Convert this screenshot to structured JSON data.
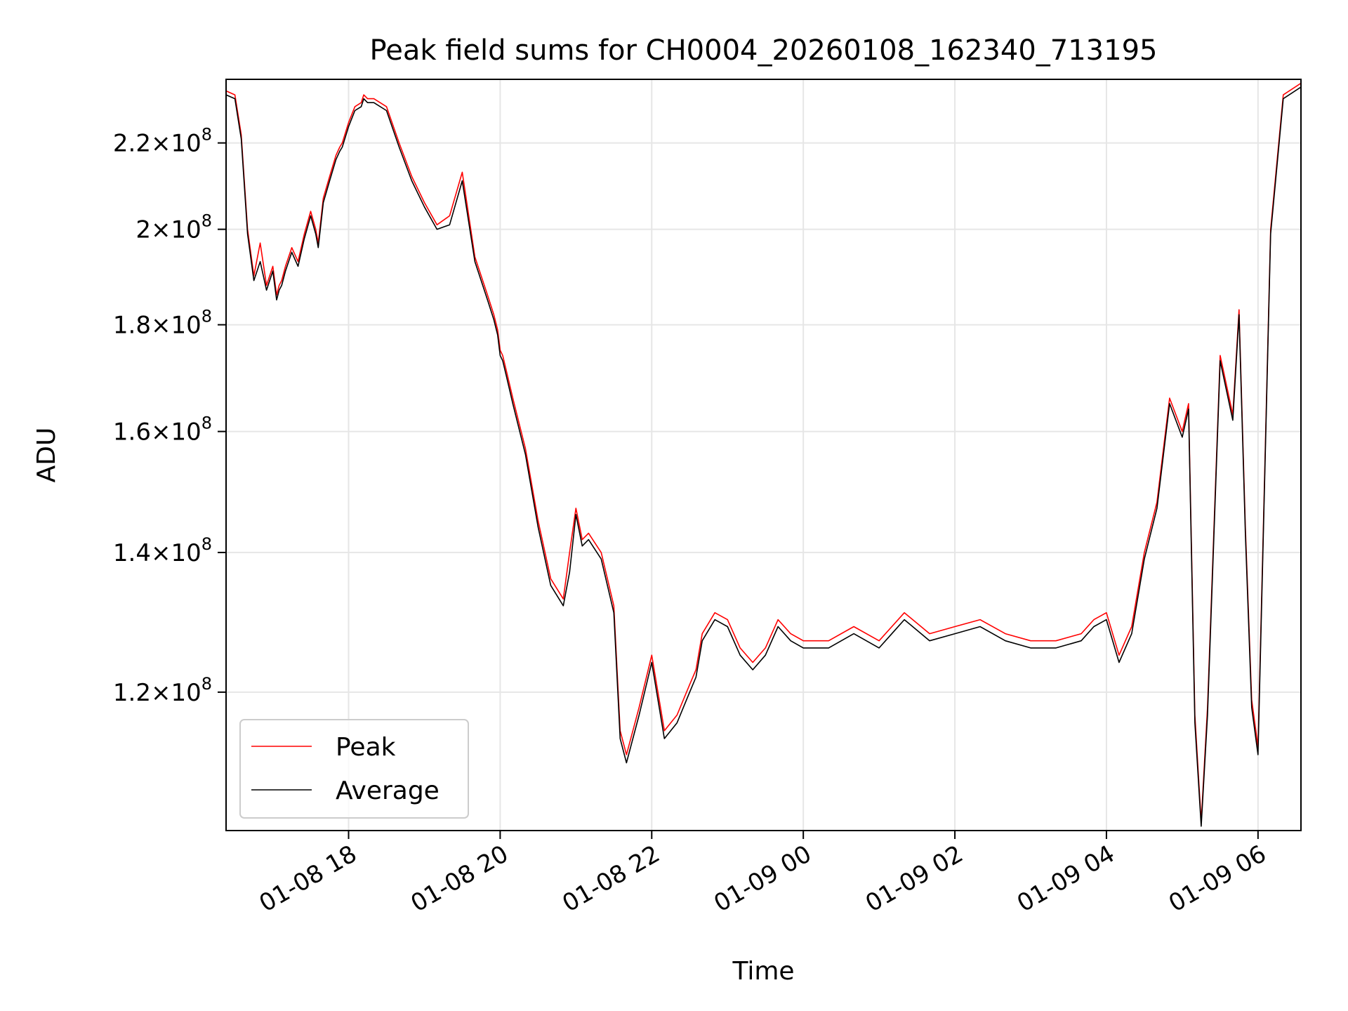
{
  "chart_data": {
    "type": "line",
    "title": "Peak field sums for CH0004_20260108_162340_713195",
    "xlabel": "Time",
    "ylabel": "ADU",
    "y_scale": "log",
    "grid": true,
    "legend_position": "lower-left",
    "xlim": [
      "2026-01-08T16:23",
      "2026-01-09T06:34"
    ],
    "ylim": [
      103000000,
      236000000
    ],
    "x_ticks": [
      {
        "value": "2026-01-08T18:00",
        "label": "01-08 18"
      },
      {
        "value": "2026-01-08T20:00",
        "label": "01-08 20"
      },
      {
        "value": "2026-01-08T22:00",
        "label": "01-08 22"
      },
      {
        "value": "2026-01-09T00:00",
        "label": "01-09 00"
      },
      {
        "value": "2026-01-09T02:00",
        "label": "01-09 02"
      },
      {
        "value": "2026-01-09T04:00",
        "label": "01-09 04"
      },
      {
        "value": "2026-01-09T06:00",
        "label": "01-09 06"
      }
    ],
    "y_ticks": [
      {
        "value": 120000000,
        "mantissa": "1.2",
        "exponent": "8"
      },
      {
        "value": 140000000,
        "mantissa": "1.4",
        "exponent": "8"
      },
      {
        "value": 160000000,
        "mantissa": "1.6",
        "exponent": "8"
      },
      {
        "value": 180000000,
        "mantissa": "1.8",
        "exponent": "8"
      },
      {
        "value": 200000000,
        "mantissa": "2",
        "exponent": "8"
      },
      {
        "value": 220000000,
        "mantissa": "2.2",
        "exponent": "8"
      }
    ],
    "series": [
      {
        "name": "Peak",
        "color": "#ff0000",
        "x": [
          "2026-01-08T16:23",
          "2026-01-08T16:30",
          "2026-01-08T16:35",
          "2026-01-08T16:40",
          "2026-01-08T16:45",
          "2026-01-08T16:50",
          "2026-01-08T16:55",
          "2026-01-08T17:00",
          "2026-01-08T17:03",
          "2026-01-08T17:05",
          "2026-01-08T17:07",
          "2026-01-08T17:10",
          "2026-01-08T17:15",
          "2026-01-08T17:20",
          "2026-01-08T17:25",
          "2026-01-08T17:30",
          "2026-01-08T17:34",
          "2026-01-08T17:36",
          "2026-01-08T17:40",
          "2026-01-08T17:45",
          "2026-01-08T17:50",
          "2026-01-08T17:53",
          "2026-01-08T17:55",
          "2026-01-08T18:00",
          "2026-01-08T18:05",
          "2026-01-08T18:10",
          "2026-01-08T18:12",
          "2026-01-08T18:15",
          "2026-01-08T18:20",
          "2026-01-08T18:30",
          "2026-01-08T18:40",
          "2026-01-08T18:50",
          "2026-01-08T19:00",
          "2026-01-08T19:10",
          "2026-01-08T19:20",
          "2026-01-08T19:30",
          "2026-01-08T19:40",
          "2026-01-08T19:50",
          "2026-01-08T19:55",
          "2026-01-08T19:58",
          "2026-01-08T20:00",
          "2026-01-08T20:02",
          "2026-01-08T20:05",
          "2026-01-08T20:10",
          "2026-01-08T20:20",
          "2026-01-08T20:30",
          "2026-01-08T20:40",
          "2026-01-08T20:50",
          "2026-01-08T20:55",
          "2026-01-08T21:00",
          "2026-01-08T21:05",
          "2026-01-08T21:10",
          "2026-01-08T21:20",
          "2026-01-08T21:30",
          "2026-01-08T21:35",
          "2026-01-08T21:40",
          "2026-01-08T21:50",
          "2026-01-08T22:00",
          "2026-01-08T22:10",
          "2026-01-08T22:20",
          "2026-01-08T22:30",
          "2026-01-08T22:35",
          "2026-01-08T22:40",
          "2026-01-08T22:50",
          "2026-01-08T23:00",
          "2026-01-08T23:10",
          "2026-01-08T23:20",
          "2026-01-08T23:30",
          "2026-01-08T23:40",
          "2026-01-08T23:50",
          "2026-01-09T00:00",
          "2026-01-09T00:20",
          "2026-01-09T00:40",
          "2026-01-09T01:00",
          "2026-01-09T01:20",
          "2026-01-09T01:40",
          "2026-01-09T02:00",
          "2026-01-09T02:20",
          "2026-01-09T02:40",
          "2026-01-09T03:00",
          "2026-01-09T03:20",
          "2026-01-09T03:40",
          "2026-01-09T03:50",
          "2026-01-09T04:00",
          "2026-01-09T04:10",
          "2026-01-09T04:20",
          "2026-01-09T04:30",
          "2026-01-09T04:40",
          "2026-01-09T04:50",
          "2026-01-09T05:00",
          "2026-01-09T05:05",
          "2026-01-09T05:10",
          "2026-01-09T05:15",
          "2026-01-09T05:20",
          "2026-01-09T05:30",
          "2026-01-09T05:40",
          "2026-01-09T05:45",
          "2026-01-09T05:50",
          "2026-01-09T05:55",
          "2026-01-09T06:00",
          "2026-01-09T06:10",
          "2026-01-09T06:20",
          "2026-01-09T06:34"
        ],
        "values": [
          233000000,
          232000000,
          222000000,
          200000000,
          190000000,
          197000000,
          188000000,
          192000000,
          186000000,
          188000000,
          189000000,
          192000000,
          196000000,
          193000000,
          199000000,
          204000000,
          200000000,
          197000000,
          207000000,
          212000000,
          217000000,
          219000000,
          220000000,
          225000000,
          229000000,
          230000000,
          232000000,
          231000000,
          231000000,
          229000000,
          220000000,
          212000000,
          206000000,
          201000000,
          203000000,
          213000000,
          194000000,
          186000000,
          182000000,
          179000000,
          175000000,
          174000000,
          171000000,
          166000000,
          157000000,
          145000000,
          136000000,
          133000000,
          140000000,
          147000000,
          142000000,
          143000000,
          140000000,
          132000000,
          115000000,
          112000000,
          118000000,
          125000000,
          115000000,
          117000000,
          121000000,
          123000000,
          128000000,
          131000000,
          130000000,
          126000000,
          124000000,
          126000000,
          130000000,
          128000000,
          127000000,
          127000000,
          129000000,
          127000000,
          131000000,
          128000000,
          129000000,
          130000000,
          128000000,
          127000000,
          127000000,
          128000000,
          130000000,
          131000000,
          125000000,
          129000000,
          140000000,
          148000000,
          166000000,
          160000000,
          165000000,
          117000000,
          104000000,
          118000000,
          174000000,
          163000000,
          183000000,
          144000000,
          119000000,
          113000000,
          200000000,
          232000000,
          235000000
        ]
      },
      {
        "name": "Average",
        "color": "#000000",
        "x": [
          "2026-01-08T16:23",
          "2026-01-08T16:30",
          "2026-01-08T16:35",
          "2026-01-08T16:40",
          "2026-01-08T16:45",
          "2026-01-08T16:50",
          "2026-01-08T16:55",
          "2026-01-08T17:00",
          "2026-01-08T17:03",
          "2026-01-08T17:05",
          "2026-01-08T17:07",
          "2026-01-08T17:10",
          "2026-01-08T17:15",
          "2026-01-08T17:20",
          "2026-01-08T17:25",
          "2026-01-08T17:30",
          "2026-01-08T17:34",
          "2026-01-08T17:36",
          "2026-01-08T17:40",
          "2026-01-08T17:45",
          "2026-01-08T17:50",
          "2026-01-08T17:53",
          "2026-01-08T17:55",
          "2026-01-08T18:00",
          "2026-01-08T18:05",
          "2026-01-08T18:10",
          "2026-01-08T18:12",
          "2026-01-08T18:15",
          "2026-01-08T18:20",
          "2026-01-08T18:30",
          "2026-01-08T18:40",
          "2026-01-08T18:50",
          "2026-01-08T19:00",
          "2026-01-08T19:10",
          "2026-01-08T19:20",
          "2026-01-08T19:30",
          "2026-01-08T19:40",
          "2026-01-08T19:50",
          "2026-01-08T19:55",
          "2026-01-08T19:58",
          "2026-01-08T20:00",
          "2026-01-08T20:02",
          "2026-01-08T20:05",
          "2026-01-08T20:10",
          "2026-01-08T20:20",
          "2026-01-08T20:30",
          "2026-01-08T20:40",
          "2026-01-08T20:50",
          "2026-01-08T20:55",
          "2026-01-08T21:00",
          "2026-01-08T21:05",
          "2026-01-08T21:10",
          "2026-01-08T21:20",
          "2026-01-08T21:30",
          "2026-01-08T21:35",
          "2026-01-08T21:40",
          "2026-01-08T21:50",
          "2026-01-08T22:00",
          "2026-01-08T22:10",
          "2026-01-08T22:20",
          "2026-01-08T22:30",
          "2026-01-08T22:35",
          "2026-01-08T22:40",
          "2026-01-08T22:50",
          "2026-01-08T23:00",
          "2026-01-08T23:10",
          "2026-01-08T23:20",
          "2026-01-08T23:30",
          "2026-01-08T23:40",
          "2026-01-08T23:50",
          "2026-01-09T00:00",
          "2026-01-09T00:20",
          "2026-01-09T00:40",
          "2026-01-09T01:00",
          "2026-01-09T01:20",
          "2026-01-09T01:40",
          "2026-01-09T02:00",
          "2026-01-09T02:20",
          "2026-01-09T02:40",
          "2026-01-09T03:00",
          "2026-01-09T03:20",
          "2026-01-09T03:40",
          "2026-01-09T03:50",
          "2026-01-09T04:00",
          "2026-01-09T04:10",
          "2026-01-09T04:20",
          "2026-01-09T04:30",
          "2026-01-09T04:40",
          "2026-01-09T04:50",
          "2026-01-09T05:00",
          "2026-01-09T05:05",
          "2026-01-09T05:10",
          "2026-01-09T05:15",
          "2026-01-09T05:20",
          "2026-01-09T05:30",
          "2026-01-09T05:40",
          "2026-01-09T05:45",
          "2026-01-09T05:50",
          "2026-01-09T05:55",
          "2026-01-09T06:00",
          "2026-01-09T06:10",
          "2026-01-09T06:20",
          "2026-01-09T06:34"
        ],
        "values": [
          232000000,
          231000000,
          221000000,
          199000000,
          189000000,
          193000000,
          187000000,
          191000000,
          185000000,
          187000000,
          188000000,
          191000000,
          195000000,
          192000000,
          198000000,
          203000000,
          199000000,
          196000000,
          206000000,
          211000000,
          216000000,
          218000000,
          219000000,
          224000000,
          228000000,
          229000000,
          231000000,
          230000000,
          230000000,
          228000000,
          219000000,
          211000000,
          205000000,
          200000000,
          201000000,
          211000000,
          193000000,
          185000000,
          181000000,
          178000000,
          174000000,
          173000000,
          170000000,
          165000000,
          156000000,
          144000000,
          135000000,
          132000000,
          137000000,
          146000000,
          141000000,
          142000000,
          139000000,
          131000000,
          114000000,
          111000000,
          117000000,
          124000000,
          114000000,
          116000000,
          120000000,
          122000000,
          127000000,
          130000000,
          129000000,
          125000000,
          123000000,
          125000000,
          129000000,
          127000000,
          126000000,
          126000000,
          128000000,
          126000000,
          130000000,
          127000000,
          128000000,
          129000000,
          127000000,
          126000000,
          126000000,
          127000000,
          129000000,
          130000000,
          124000000,
          128000000,
          139000000,
          147000000,
          165000000,
          159000000,
          164000000,
          116000000,
          103500000,
          117000000,
          173000000,
          162000000,
          182000000,
          143000000,
          118000000,
          112000000,
          199000000,
          231000000,
          234000000
        ]
      }
    ]
  }
}
